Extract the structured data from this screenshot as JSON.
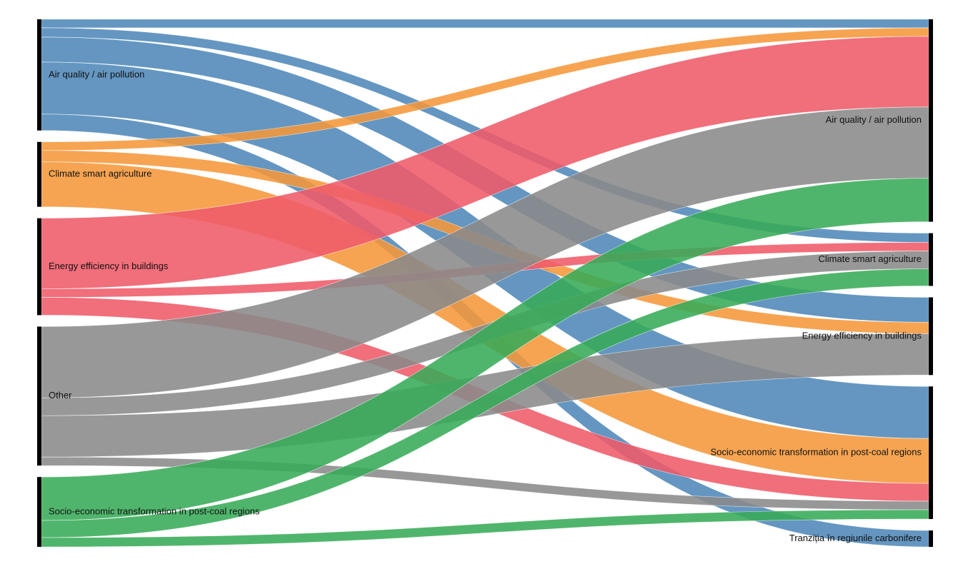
{
  "chart_data": {
    "type": "sankey",
    "nodes": [
      {
        "name": "Air quality / air pollution",
        "color": "#4f87b8"
      },
      {
        "name": "Climate smart agriculture",
        "color": "#f5973a"
      },
      {
        "name": "Energy efficiency in buildings",
        "color": "#ef5a69"
      },
      {
        "name": "Other",
        "color": "#8a8a8a"
      },
      {
        "name": "Socio-economic transformation in post-coal regions",
        "color": "#38ab58"
      },
      {
        "name": "Air quality / air pollution"
      },
      {
        "name": "Climate smart agriculture"
      },
      {
        "name": "Energy efficiency in buildings"
      },
      {
        "name": "Socio-economic transformation in post-coal regions"
      },
      {
        "name": "Tranziția în regiunile carbonifere"
      }
    ],
    "links": [
      {
        "source": 0,
        "target": 5,
        "value": 12
      },
      {
        "source": 0,
        "target": 6,
        "value": 13
      },
      {
        "source": 0,
        "target": 7,
        "value": 35
      },
      {
        "source": 0,
        "target": 8,
        "value": 73
      },
      {
        "source": 0,
        "target": 9,
        "value": 23
      },
      {
        "source": 1,
        "target": 5,
        "value": 12
      },
      {
        "source": 1,
        "target": 7,
        "value": 16
      },
      {
        "source": 1,
        "target": 8,
        "value": 63
      },
      {
        "source": 2,
        "target": 5,
        "value": 99
      },
      {
        "source": 2,
        "target": 6,
        "value": 12
      },
      {
        "source": 2,
        "target": 8,
        "value": 25
      },
      {
        "source": 3,
        "target": 5,
        "value": 100
      },
      {
        "source": 3,
        "target": 6,
        "value": 25
      },
      {
        "source": 3,
        "target": 7,
        "value": 58
      },
      {
        "source": 3,
        "target": 8,
        "value": 12
      },
      {
        "source": 4,
        "target": 5,
        "value": 61
      },
      {
        "source": 4,
        "target": 6,
        "value": 24
      },
      {
        "source": 4,
        "target": 8,
        "value": 13
      }
    ]
  }
}
